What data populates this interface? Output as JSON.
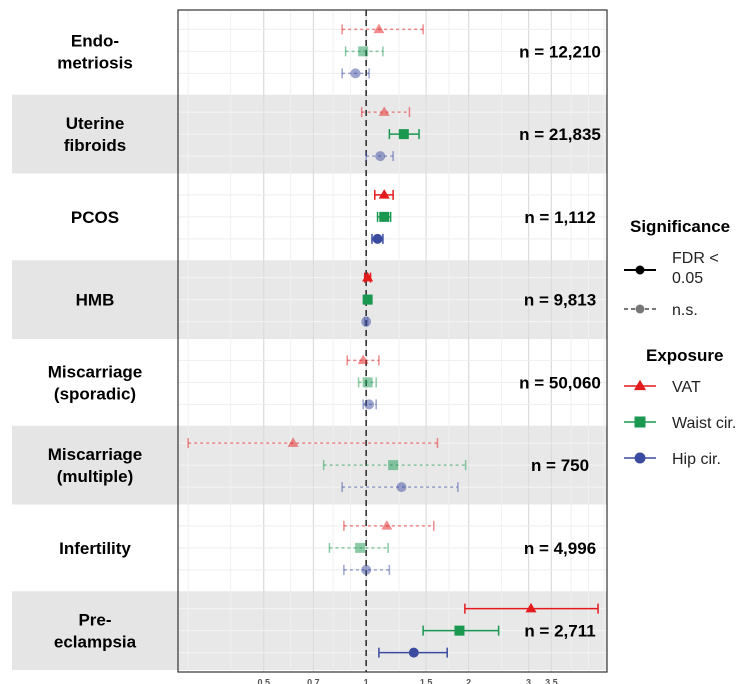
{
  "chart_data": {
    "type": "forest",
    "x_scale": "log",
    "xlim": [
      0.28,
      5.1
    ],
    "x_ticks": [
      0.5,
      0.7,
      1,
      1.5,
      2,
      3,
      3.5
    ],
    "x_tick_labels": [
      "0.5",
      "0.7",
      "1",
      "1.5",
      "2",
      "3",
      "3.5"
    ],
    "reference_line": 1,
    "grid": true,
    "colors": {
      "VAT": "#e41a1c",
      "Waist cir.": "#1a9850",
      "Hip cir.": "#3b4ba0"
    },
    "outcomes": [
      {
        "label": [
          "Endo-",
          "metriosis"
        ],
        "n": "n = 12,210",
        "shaded": false,
        "estimates": [
          {
            "exposure": "VAT",
            "or": 1.09,
            "lo": 0.85,
            "hi": 1.47,
            "significant": false
          },
          {
            "exposure": "Waist cir.",
            "or": 0.98,
            "lo": 0.87,
            "hi": 1.12,
            "significant": false
          },
          {
            "exposure": "Hip cir.",
            "or": 0.93,
            "lo": 0.85,
            "hi": 1.02,
            "significant": false
          }
        ]
      },
      {
        "label": [
          "Uterine",
          "fibroids"
        ],
        "n": "n = 21,835",
        "shaded": true,
        "estimates": [
          {
            "exposure": "VAT",
            "or": 1.13,
            "lo": 0.97,
            "hi": 1.34,
            "significant": false
          },
          {
            "exposure": "Waist cir.",
            "or": 1.29,
            "lo": 1.17,
            "hi": 1.43,
            "significant": true
          },
          {
            "exposure": "Hip cir.",
            "or": 1.1,
            "lo": 1.0,
            "hi": 1.2,
            "significant": false
          }
        ]
      },
      {
        "label": [
          "PCOS"
        ],
        "n": "n = 1,112",
        "shaded": false,
        "estimates": [
          {
            "exposure": "VAT",
            "or": 1.13,
            "lo": 1.06,
            "hi": 1.2,
            "significant": true
          },
          {
            "exposure": "Waist cir.",
            "or": 1.13,
            "lo": 1.08,
            "hi": 1.18,
            "significant": true
          },
          {
            "exposure": "Hip cir.",
            "or": 1.08,
            "lo": 1.04,
            "hi": 1.12,
            "significant": true
          }
        ]
      },
      {
        "label": [
          "HMB"
        ],
        "n": "n = 9,813",
        "shaded": true,
        "estimates": [
          {
            "exposure": "VAT",
            "or": 1.01,
            "lo": 0.99,
            "hi": 1.03,
            "significant": true
          },
          {
            "exposure": "Waist cir.",
            "or": 1.01,
            "lo": 0.99,
            "hi": 1.03,
            "significant": true
          },
          {
            "exposure": "Hip cir.",
            "or": 1.0,
            "lo": 0.99,
            "hi": 1.01,
            "significant": false
          }
        ]
      },
      {
        "label": [
          "Miscarriage",
          "(sporadic)"
        ],
        "n": "n = 50,060",
        "shaded": false,
        "estimates": [
          {
            "exposure": "VAT",
            "or": 0.98,
            "lo": 0.88,
            "hi": 1.09,
            "significant": false
          },
          {
            "exposure": "Waist cir.",
            "or": 1.01,
            "lo": 0.95,
            "hi": 1.07,
            "significant": false
          },
          {
            "exposure": "Hip cir.",
            "or": 1.02,
            "lo": 0.98,
            "hi": 1.07,
            "significant": false
          }
        ]
      },
      {
        "label": [
          "Miscarriage",
          "(multiple)"
        ],
        "n": "n = 750",
        "shaded": true,
        "estimates": [
          {
            "exposure": "VAT",
            "or": 0.61,
            "lo": 0.3,
            "hi": 1.62,
            "significant": false
          },
          {
            "exposure": "Waist cir.",
            "or": 1.2,
            "lo": 0.75,
            "hi": 1.96,
            "significant": false
          },
          {
            "exposure": "Hip cir.",
            "or": 1.27,
            "lo": 0.85,
            "hi": 1.86,
            "significant": false
          }
        ]
      },
      {
        "label": [
          "Infertility"
        ],
        "n": "n = 4,996",
        "shaded": false,
        "estimates": [
          {
            "exposure": "VAT",
            "or": 1.15,
            "lo": 0.86,
            "hi": 1.58,
            "significant": false
          },
          {
            "exposure": "Waist cir.",
            "or": 0.96,
            "lo": 0.78,
            "hi": 1.16,
            "significant": false
          },
          {
            "exposure": "Hip cir.",
            "or": 1.0,
            "lo": 0.86,
            "hi": 1.17,
            "significant": false
          }
        ]
      },
      {
        "label": [
          "Pre-",
          "eclampsia"
        ],
        "n": "n = 2,711",
        "shaded": true,
        "estimates": [
          {
            "exposure": "VAT",
            "or": 3.05,
            "lo": 1.95,
            "hi": 4.8,
            "significant": true
          },
          {
            "exposure": "Waist cir.",
            "or": 1.88,
            "lo": 1.47,
            "hi": 2.45,
            "significant": true
          },
          {
            "exposure": "Hip cir.",
            "or": 1.38,
            "lo": 1.09,
            "hi": 1.73,
            "significant": true
          }
        ]
      }
    ],
    "legend": {
      "placement": "right",
      "significance": {
        "title": "Significance",
        "items": [
          {
            "label": [
              "FDR <",
              "0.05"
            ],
            "style": "solid"
          },
          {
            "label": [
              "n.s."
            ],
            "style": "dashed"
          }
        ]
      },
      "exposure": {
        "title": "Exposure",
        "items": [
          {
            "label": "VAT",
            "shape": "triangle"
          },
          {
            "label": "Waist cir.",
            "shape": "square"
          },
          {
            "label": "Hip cir.",
            "shape": "circle"
          }
        ]
      }
    }
  }
}
